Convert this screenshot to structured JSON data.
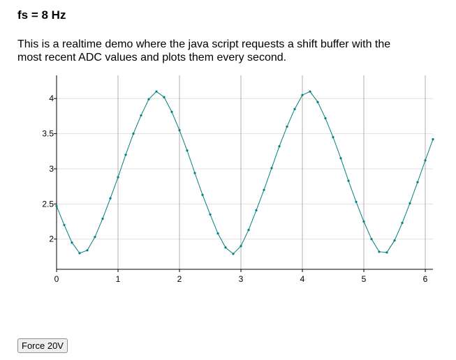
{
  "header": {
    "title": "fs = 8 Hz"
  },
  "description": "This is a realtime demo where the java script requests a shift buffer with the most recent ADC values and plots them every second.",
  "chart_data": {
    "type": "line",
    "x": [
      0,
      0.125,
      0.25,
      0.375,
      0.5,
      0.625,
      0.75,
      0.875,
      1,
      1.125,
      1.25,
      1.375,
      1.5,
      1.625,
      1.75,
      1.875,
      2,
      2.125,
      2.25,
      2.375,
      2.5,
      2.625,
      2.75,
      2.875,
      3,
      3.125,
      3.25,
      3.375,
      3.5,
      3.625,
      3.75,
      3.875,
      4,
      4.125,
      4.25,
      4.375,
      4.5,
      4.625,
      4.75,
      4.875,
      5,
      5.125,
      5.25,
      5.375,
      5.5,
      5.625,
      5.75,
      5.875,
      6,
      6.125
    ],
    "series": [
      {
        "color": "#008080",
        "values": [
          2.47,
          2.2,
          1.95,
          1.8,
          1.84,
          2.03,
          2.29,
          2.58,
          2.88,
          3.2,
          3.5,
          3.76,
          3.99,
          4.1,
          4.02,
          3.81,
          3.55,
          3.26,
          2.94,
          2.63,
          2.35,
          2.08,
          1.88,
          1.79,
          1.9,
          2.13,
          2.41,
          2.7,
          3.01,
          3.32,
          3.6,
          3.85,
          4.05,
          4.1,
          3.95,
          3.72,
          3.45,
          3.15,
          2.83,
          2.53,
          2.25,
          2.0,
          1.82,
          1.81,
          1.98,
          2.23,
          2.51,
          2.81,
          3.12,
          3.42
        ]
      }
    ],
    "xlim": [
      0,
      6.125
    ],
    "xticks": [
      0,
      1,
      2,
      3,
      4,
      5,
      6
    ],
    "ylim": [
      1.57,
      4.33
    ],
    "yticks": [
      2,
      2.5,
      3,
      3.5,
      4
    ],
    "grid": true,
    "markers": true
  },
  "button": {
    "label": "Force 20V"
  }
}
